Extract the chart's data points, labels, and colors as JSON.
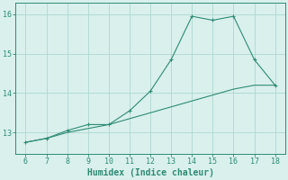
{
  "line1_x": [
    6,
    7,
    8,
    9,
    10,
    11,
    12,
    13,
    14,
    15,
    16,
    17,
    18
  ],
  "line1_y": [
    12.75,
    12.85,
    13.05,
    13.2,
    13.2,
    13.55,
    14.05,
    14.85,
    15.95,
    15.85,
    15.95,
    14.85,
    14.2
  ],
  "line2_x": [
    6,
    7,
    8,
    9,
    10,
    11,
    12,
    13,
    14,
    15,
    16,
    17,
    18
  ],
  "line2_y": [
    12.75,
    12.85,
    13.0,
    13.1,
    13.2,
    13.35,
    13.5,
    13.65,
    13.8,
    13.95,
    14.1,
    14.2,
    14.2
  ],
  "color": "#2e8b74",
  "bg_color": "#d9f0ed",
  "grid_color": "#aed8d0",
  "xlabel": "Humidex (Indice chaleur)",
  "xlabel_fontsize": 7,
  "xlim": [
    5.5,
    18.5
  ],
  "ylim": [
    12.45,
    16.3
  ],
  "yticks": [
    13,
    14,
    15,
    16
  ],
  "xticks": [
    6,
    7,
    8,
    9,
    10,
    11,
    12,
    13,
    14,
    15,
    16,
    17,
    18
  ],
  "marker": "+"
}
